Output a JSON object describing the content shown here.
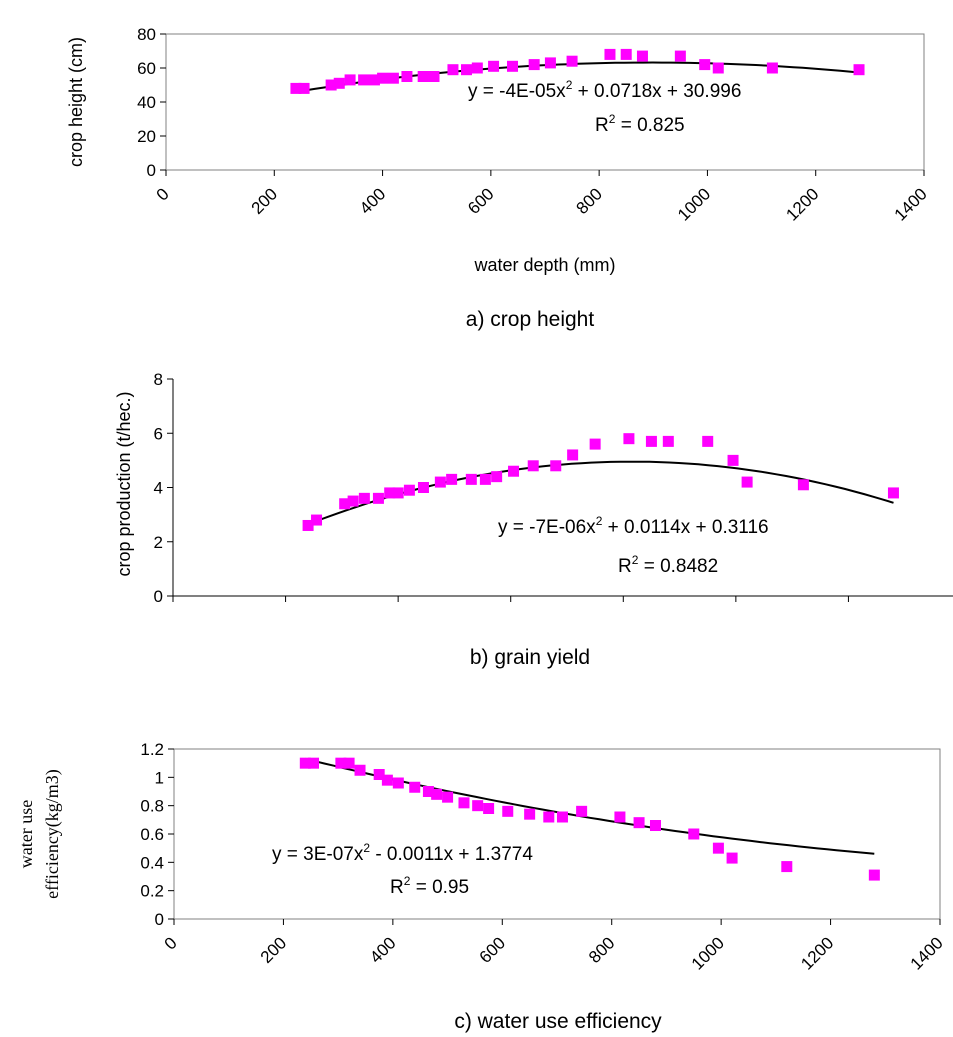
{
  "chart_data": [
    {
      "type": "scatter",
      "caption": "a) crop height",
      "xlabel": "water depth (mm)",
      "ylabel": "crop height (cm)",
      "xlim": [
        0,
        1400
      ],
      "ylim": [
        0,
        80
      ],
      "xticks": [
        "0",
        "200",
        "400",
        "600",
        "800",
        "1000",
        "1200",
        "1400"
      ],
      "yticks": [
        "0",
        "20",
        "40",
        "60",
        "80"
      ],
      "marker_color": "#ff00ff",
      "trendline_color": "#000000",
      "trendline": {
        "a": -4e-05,
        "b": 0.0718,
        "c": 30.996,
        "x_range": [
          240,
          1280
        ]
      },
      "equation": "y = -4E-05x",
      "equation_rest": " + 0.0718x + 30.996",
      "r2_prefix": "R",
      "r2_value": " = 0.825",
      "points": [
        {
          "x": 240,
          "y": 48
        },
        {
          "x": 255,
          "y": 48
        },
        {
          "x": 305,
          "y": 50
        },
        {
          "x": 320,
          "y": 51
        },
        {
          "x": 340,
          "y": 53
        },
        {
          "x": 365,
          "y": 53
        },
        {
          "x": 385,
          "y": 53
        },
        {
          "x": 400,
          "y": 54
        },
        {
          "x": 420,
          "y": 54
        },
        {
          "x": 445,
          "y": 55
        },
        {
          "x": 475,
          "y": 55
        },
        {
          "x": 495,
          "y": 55
        },
        {
          "x": 530,
          "y": 59
        },
        {
          "x": 555,
          "y": 59
        },
        {
          "x": 575,
          "y": 60
        },
        {
          "x": 605,
          "y": 61
        },
        {
          "x": 640,
          "y": 61
        },
        {
          "x": 680,
          "y": 62
        },
        {
          "x": 710,
          "y": 63
        },
        {
          "x": 750,
          "y": 64
        },
        {
          "x": 820,
          "y": 68
        },
        {
          "x": 850,
          "y": 68
        },
        {
          "x": 880,
          "y": 67
        },
        {
          "x": 950,
          "y": 67
        },
        {
          "x": 995,
          "y": 62
        },
        {
          "x": 1020,
          "y": 60
        },
        {
          "x": 1120,
          "y": 60
        },
        {
          "x": 1280,
          "y": 59
        }
      ]
    },
    {
      "type": "scatter",
      "caption": "b) grain yield",
      "xlabel": "",
      "ylabel": "crop production (t/hec.)",
      "xlim": [
        0,
        1400
      ],
      "ylim": [
        0,
        8
      ],
      "xticks": [],
      "yticks": [
        "0",
        "2",
        "4",
        "6",
        "8"
      ],
      "marker_color": "#ff00ff",
      "trendline_color": "#000000",
      "trendline": {
        "a": -7e-06,
        "b": 0.0114,
        "c": 0.3116,
        "x_range": [
          240,
          1280
        ]
      },
      "equation": "y = -7E-06x",
      "equation_rest": " + 0.0114x + 0.3116",
      "r2_prefix": "R",
      "r2_value": " = 0.8482",
      "points": [
        {
          "x": 240,
          "y": 2.6
        },
        {
          "x": 255,
          "y": 2.8
        },
        {
          "x": 305,
          "y": 3.4
        },
        {
          "x": 320,
          "y": 3.5
        },
        {
          "x": 340,
          "y": 3.6
        },
        {
          "x": 365,
          "y": 3.6
        },
        {
          "x": 385,
          "y": 3.8
        },
        {
          "x": 400,
          "y": 3.8
        },
        {
          "x": 420,
          "y": 3.9
        },
        {
          "x": 445,
          "y": 4.0
        },
        {
          "x": 475,
          "y": 4.2
        },
        {
          "x": 495,
          "y": 4.3
        },
        {
          "x": 530,
          "y": 4.3
        },
        {
          "x": 555,
          "y": 4.3
        },
        {
          "x": 575,
          "y": 4.4
        },
        {
          "x": 605,
          "y": 4.6
        },
        {
          "x": 640,
          "y": 4.8
        },
        {
          "x": 680,
          "y": 4.8
        },
        {
          "x": 710,
          "y": 5.2
        },
        {
          "x": 750,
          "y": 5.6
        },
        {
          "x": 810,
          "y": 5.8
        },
        {
          "x": 850,
          "y": 5.7
        },
        {
          "x": 880,
          "y": 5.7
        },
        {
          "x": 950,
          "y": 5.7
        },
        {
          "x": 995,
          "y": 5.0
        },
        {
          "x": 1020,
          "y": 4.2
        },
        {
          "x": 1120,
          "y": 4.1
        },
        {
          "x": 1280,
          "y": 3.8
        }
      ]
    },
    {
      "type": "scatter",
      "caption": "c) water use efficiency",
      "xlabel": "",
      "ylabel_line1": "water use",
      "ylabel_line2": "efficiency(kg/m3)",
      "xlim": [
        0,
        1400
      ],
      "ylim": [
        0,
        1.2
      ],
      "xticks": [
        "0",
        "200",
        "400",
        "600",
        "800",
        "1000",
        "1200",
        "1400"
      ],
      "yticks": [
        "0",
        "0.2",
        "0.4",
        "0.6",
        "0.8",
        "1",
        "1.2"
      ],
      "marker_color": "#ff00ff",
      "trendline_color": "#000000",
      "trendline": {
        "a": 3e-07,
        "b": -0.0011,
        "c": 1.3774,
        "x_range": [
          240,
          1280
        ]
      },
      "equation": "y = 3E-07x",
      "equation_rest": " - 0.0011x + 1.3774",
      "r2_prefix": "R",
      "r2_value": " = 0.95",
      "points": [
        {
          "x": 240,
          "y": 1.1
        },
        {
          "x": 255,
          "y": 1.1
        },
        {
          "x": 305,
          "y": 1.1
        },
        {
          "x": 320,
          "y": 1.1
        },
        {
          "x": 340,
          "y": 1.05
        },
        {
          "x": 375,
          "y": 1.02
        },
        {
          "x": 390,
          "y": 0.98
        },
        {
          "x": 410,
          "y": 0.96
        },
        {
          "x": 440,
          "y": 0.93
        },
        {
          "x": 465,
          "y": 0.9
        },
        {
          "x": 480,
          "y": 0.88
        },
        {
          "x": 500,
          "y": 0.86
        },
        {
          "x": 530,
          "y": 0.82
        },
        {
          "x": 555,
          "y": 0.8
        },
        {
          "x": 575,
          "y": 0.78
        },
        {
          "x": 610,
          "y": 0.76
        },
        {
          "x": 650,
          "y": 0.74
        },
        {
          "x": 685,
          "y": 0.72
        },
        {
          "x": 710,
          "y": 0.72
        },
        {
          "x": 745,
          "y": 0.76
        },
        {
          "x": 815,
          "y": 0.72
        },
        {
          "x": 850,
          "y": 0.68
        },
        {
          "x": 880,
          "y": 0.66
        },
        {
          "x": 950,
          "y": 0.6
        },
        {
          "x": 995,
          "y": 0.5
        },
        {
          "x": 1020,
          "y": 0.43
        },
        {
          "x": 1120,
          "y": 0.37
        },
        {
          "x": 1280,
          "y": 0.31
        }
      ]
    }
  ]
}
